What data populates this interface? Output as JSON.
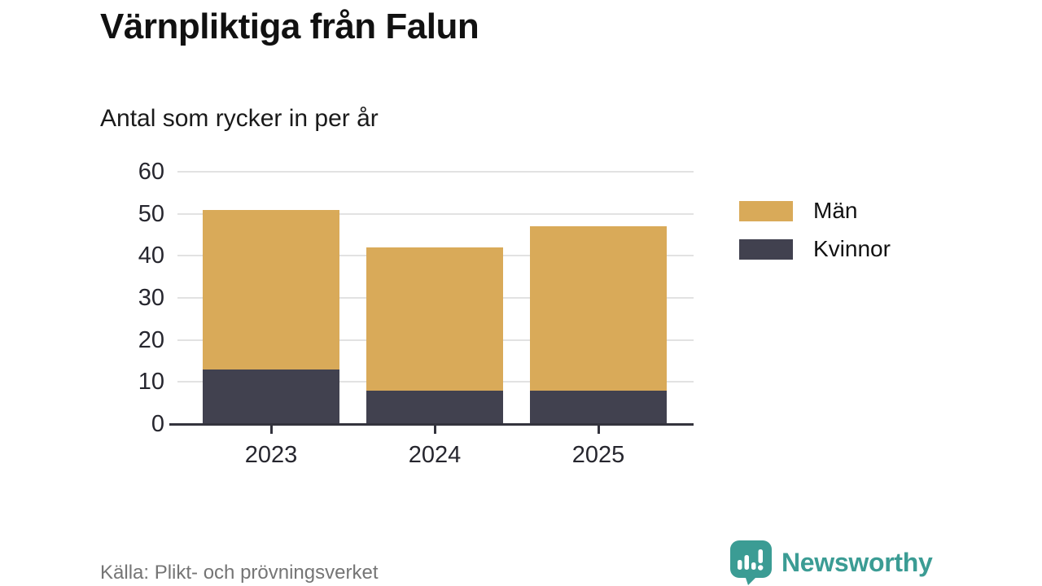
{
  "header": {
    "title": "Värnpliktiga från Falun",
    "subtitle": "Antal som rycker in per år"
  },
  "chart_data": {
    "type": "bar",
    "stacked": true,
    "title": "Värnpliktiga från Falun",
    "subtitle": "Antal som rycker in per år",
    "categories": [
      "2023",
      "2024",
      "2025"
    ],
    "series": [
      {
        "name": "Män",
        "color": "#d9aa59",
        "values": [
          38,
          34,
          39
        ]
      },
      {
        "name": "Kvinnor",
        "color": "#41414f",
        "values": [
          13,
          8,
          8
        ]
      }
    ],
    "stack_order_bottom_to_top": [
      "Kvinnor",
      "Män"
    ],
    "totals": [
      51,
      42,
      47
    ],
    "xlabel": "",
    "ylabel": "",
    "ylim": [
      0,
      60
    ],
    "yticks": [
      0,
      10,
      20,
      30,
      40,
      50,
      60
    ],
    "grid": "horizontal",
    "legend_position": "right"
  },
  "footer": {
    "source": "Källa: Plikt- och prövningsverket",
    "brand": "Newsworthy"
  },
  "colors": {
    "background": "#ffffff",
    "grid": "#e2e2e2",
    "axis": "#33333d",
    "text": "#111111",
    "tick_text": "#26262e",
    "source_text": "#757575",
    "brand_teal": "#3b9c94",
    "man_gold": "#d9aa59",
    "kvinnor_dark": "#41414f"
  }
}
